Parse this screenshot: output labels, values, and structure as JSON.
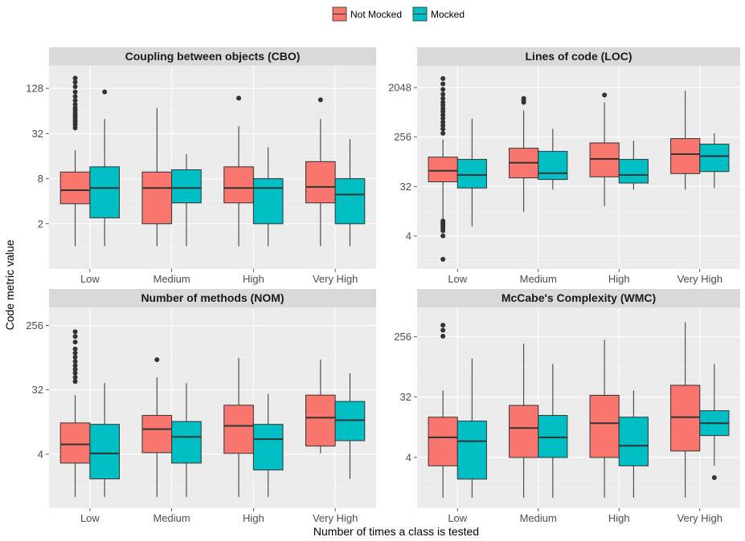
{
  "chart_data": {
    "type": "boxplot",
    "xlabel": "Number of times a class is tested",
    "ylabel": "Code metric value",
    "legend": {
      "position": "top-center",
      "entries": [
        {
          "name": "Not Mocked",
          "color": "#F8766D"
        },
        {
          "name": "Mocked",
          "color": "#00BFC4"
        }
      ]
    },
    "grid": true,
    "categories": [
      "Low",
      "Medium",
      "High",
      "Very High"
    ],
    "series_names": [
      "Not Mocked",
      "Mocked"
    ],
    "colors": {
      "Not Mocked": "#F8766D",
      "Mocked": "#00BFC4"
    },
    "panels": [
      {
        "title": "Coupling between objects (CBO)",
        "yscale": "log2",
        "ylim": [
          0.5,
          256
        ],
        "yticks": [
          2,
          8,
          32,
          128
        ],
        "ytick_labels": [
          "2",
          "8",
          "32",
          "128"
        ],
        "boxes": [
          {
            "category": "Low",
            "series": "Not Mocked",
            "min": 1,
            "q1": 3.7,
            "median": 5.6,
            "q3": 9.8,
            "max": 19,
            "outliers": [
              38,
              42,
              45,
              48,
              52,
              56,
              60,
              65,
              70,
              78,
              88,
              100,
              115,
              135,
              155,
              175
            ]
          },
          {
            "category": "Low",
            "series": "Mocked",
            "min": 1,
            "q1": 2.4,
            "median": 6,
            "q3": 11.5,
            "max": 50,
            "outliers": [
              115
            ]
          },
          {
            "category": "Medium",
            "series": "Not Mocked",
            "min": 1,
            "q1": 2.0,
            "median": 6,
            "q3": 9.8,
            "max": 70,
            "outliers": []
          },
          {
            "category": "Medium",
            "series": "Mocked",
            "min": 1,
            "q1": 3.8,
            "median": 6,
            "q3": 10.5,
            "max": 17,
            "outliers": []
          },
          {
            "category": "High",
            "series": "Not Mocked",
            "min": 1,
            "q1": 3.8,
            "median": 6,
            "q3": 11.5,
            "max": 40,
            "outliers": [
              95
            ]
          },
          {
            "category": "High",
            "series": "Mocked",
            "min": 1,
            "q1": 2.0,
            "median": 6,
            "q3": 8.0,
            "max": 21,
            "outliers": []
          },
          {
            "category": "Very High",
            "series": "Not Mocked",
            "min": 1,
            "q1": 3.8,
            "median": 6.2,
            "q3": 13.5,
            "max": 50,
            "outliers": [
              90
            ]
          },
          {
            "category": "Very High",
            "series": "Mocked",
            "min": 1,
            "q1": 2.0,
            "median": 4.9,
            "q3": 8.0,
            "max": 27,
            "outliers": []
          }
        ]
      },
      {
        "title": "Lines of code (LOC)",
        "yscale": "log2",
        "ylim": [
          1,
          5120
        ],
        "yticks": [
          4,
          32,
          256,
          2048
        ],
        "ytick_labels": [
          "4",
          "32",
          "256",
          "2048"
        ],
        "boxes": [
          {
            "category": "Low",
            "series": "Not Mocked",
            "min": 8,
            "q1": 39,
            "median": 62,
            "q3": 110,
            "max": 230,
            "outliers": [
              1.5,
              4,
              5,
              5.5,
              6,
              6.5,
              7,
              7.5,
              300,
              360,
              420,
              480,
              560,
              650,
              750,
              850,
              980,
              1100,
              1300,
              1550,
              1900,
              2400,
              3000
            ]
          },
          {
            "category": "Low",
            "series": "Mocked",
            "min": 6,
            "q1": 30,
            "median": 52,
            "q3": 100,
            "max": 550,
            "outliers": []
          },
          {
            "category": "Medium",
            "series": "Not Mocked",
            "min": 11,
            "q1": 46,
            "median": 87,
            "q3": 160,
            "max": 780,
            "outliers": [
              1100,
              1200,
              1300
            ]
          },
          {
            "category": "Medium",
            "series": "Mocked",
            "min": 28,
            "q1": 43,
            "median": 56,
            "q3": 140,
            "max": 360,
            "outliers": []
          },
          {
            "category": "High",
            "series": "Not Mocked",
            "min": 14,
            "q1": 48,
            "median": 102,
            "q3": 200,
            "max": 1100,
            "outliers": [
              1500
            ]
          },
          {
            "category": "High",
            "series": "Mocked",
            "min": 28,
            "q1": 37,
            "median": 52,
            "q3": 100,
            "max": 220,
            "outliers": []
          },
          {
            "category": "Very High",
            "series": "Not Mocked",
            "min": 28,
            "q1": 55,
            "median": 125,
            "q3": 240,
            "max": 1800,
            "outliers": []
          },
          {
            "category": "Very High",
            "series": "Mocked",
            "min": 30,
            "q1": 60,
            "median": 115,
            "q3": 190,
            "max": 300,
            "outliers": []
          }
        ]
      },
      {
        "title": "Number of methods (NOM)",
        "yscale": "log2",
        "ylim": [
          0.7,
          460
        ],
        "yticks": [
          4,
          32,
          256
        ],
        "ytick_labels": [
          "4",
          "32",
          "256"
        ],
        "boxes": [
          {
            "category": "Low",
            "series": "Not Mocked",
            "min": 1,
            "q1": 3,
            "median": 5.5,
            "q3": 11,
            "max": 27,
            "outliers": [
              42,
              48,
              55,
              62,
              70,
              80,
              92,
              105,
              120,
              150,
              180,
              210
            ]
          },
          {
            "category": "Low",
            "series": "Mocked",
            "min": 1,
            "q1": 1.8,
            "median": 4.1,
            "q3": 10.5,
            "max": 40,
            "outliers": []
          },
          {
            "category": "Medium",
            "series": "Not Mocked",
            "min": 1,
            "q1": 4.2,
            "median": 9,
            "q3": 14,
            "max": 48,
            "outliers": [
              85
            ]
          },
          {
            "category": "Medium",
            "series": "Mocked",
            "min": 1,
            "q1": 3,
            "median": 7,
            "q3": 11.5,
            "max": 40,
            "outliers": []
          },
          {
            "category": "High",
            "series": "Not Mocked",
            "min": 1,
            "q1": 4.1,
            "median": 10,
            "q3": 19.5,
            "max": 90,
            "outliers": []
          },
          {
            "category": "High",
            "series": "Mocked",
            "min": 1,
            "q1": 2.4,
            "median": 6.5,
            "q3": 10.5,
            "max": 28,
            "outliers": []
          },
          {
            "category": "Very High",
            "series": "Not Mocked",
            "min": 4.1,
            "q1": 5.2,
            "median": 13,
            "q3": 27,
            "max": 85,
            "outliers": []
          },
          {
            "category": "Very High",
            "series": "Mocked",
            "min": 1.8,
            "q1": 6.2,
            "median": 12,
            "q3": 22,
            "max": 55,
            "outliers": []
          }
        ]
      },
      {
        "title": "McCabe's Complexity (WMC)",
        "yscale": "log2",
        "ylim": [
          0.7,
          700
        ],
        "yticks": [
          4,
          32,
          256
        ],
        "ytick_labels": [
          "4",
          "32",
          "256"
        ],
        "boxes": [
          {
            "category": "Low",
            "series": "Not Mocked",
            "min": 1,
            "q1": 3,
            "median": 8,
            "q3": 16,
            "max": 40,
            "outliers": [
              260,
              320,
              380
            ]
          },
          {
            "category": "Low",
            "series": "Mocked",
            "min": 1,
            "q1": 1.9,
            "median": 7,
            "q3": 14,
            "max": 120,
            "outliers": []
          },
          {
            "category": "Medium",
            "series": "Not Mocked",
            "min": 1,
            "q1": 4,
            "median": 11,
            "q3": 24,
            "max": 200,
            "outliers": []
          },
          {
            "category": "Medium",
            "series": "Mocked",
            "min": 1,
            "q1": 4,
            "median": 8,
            "q3": 17,
            "max": 100,
            "outliers": []
          },
          {
            "category": "High",
            "series": "Not Mocked",
            "min": 1,
            "q1": 4,
            "median": 13,
            "q3": 34,
            "max": 230,
            "outliers": []
          },
          {
            "category": "High",
            "series": "Mocked",
            "min": 1,
            "q1": 3,
            "median": 6,
            "q3": 16,
            "max": 40,
            "outliers": []
          },
          {
            "category": "Very High",
            "series": "Not Mocked",
            "min": 1,
            "q1": 5,
            "median": 16,
            "q3": 48,
            "max": 420,
            "outliers": []
          },
          {
            "category": "Very High",
            "series": "Mocked",
            "min": 3,
            "q1": 8.5,
            "median": 13,
            "q3": 20,
            "max": 100,
            "outliers": [
              2
            ]
          }
        ]
      }
    ]
  }
}
